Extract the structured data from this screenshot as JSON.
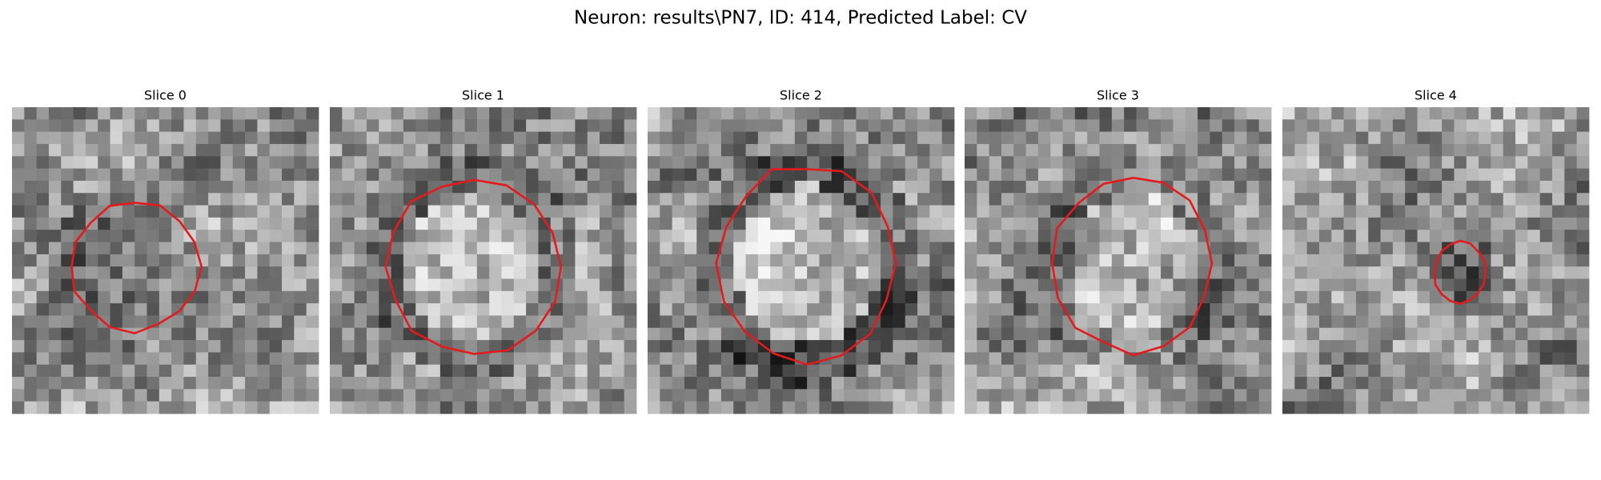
{
  "title": "Neuron: results\\PN7, ID: 414, Predicted Label: CV",
  "panels": [
    {
      "title": "Slice 0"
    },
    {
      "title": "Slice 1"
    },
    {
      "title": "Slice 2"
    },
    {
      "title": "Slice 3"
    },
    {
      "title": "Slice 4"
    }
  ]
}
